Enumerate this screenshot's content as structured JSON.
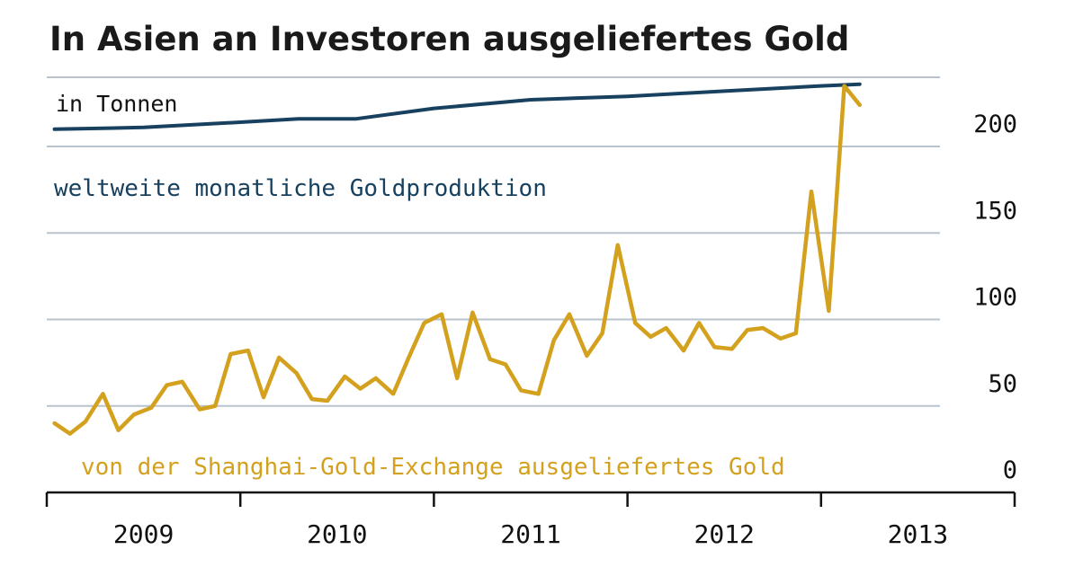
{
  "chart_data": {
    "type": "line",
    "title": "In Asien an Investoren ausgeliefertes Gold",
    "unit_label": "in Tonnen",
    "ylim": [
      0,
      240
    ],
    "y_ticks": [
      0,
      50,
      100,
      150,
      200
    ],
    "grid": true,
    "x_start": 2009.0,
    "x_end": 2014.0,
    "year_labels": [
      "2009",
      "2010",
      "2011",
      "2012",
      "2013"
    ],
    "year_label_positions": [
      2009.5,
      2010.5,
      2011.5,
      2012.5,
      2013.5
    ],
    "year_boundaries": [
      2009.0,
      2010.0,
      2011.0,
      2012.0,
      2013.0,
      2014.0
    ],
    "series": [
      {
        "name": "weltweite monatliche Goldproduktion",
        "color": "#17415f",
        "x": [
          2009.04,
          2009.5,
          2010.0,
          2010.3,
          2010.6,
          2011.0,
          2011.5,
          2012.0,
          2012.5,
          2013.0,
          2013.2
        ],
        "values": [
          210,
          211,
          214,
          216,
          216,
          222,
          227,
          229,
          232,
          235,
          236
        ]
      },
      {
        "name": "von der Shanghai-Gold-Exchange ausgeliefertes Gold",
        "color": "#d4a11e",
        "x": [
          2009.04,
          2009.12,
          2009.2,
          2009.29,
          2009.37,
          2009.45,
          2009.54,
          2009.62,
          2009.7,
          2009.79,
          2009.87,
          2009.95,
          2010.04,
          2010.12,
          2010.2,
          2010.29,
          2010.37,
          2010.45,
          2010.54,
          2010.62,
          2010.7,
          2010.79,
          2010.87,
          2010.95,
          2011.04,
          2011.12,
          2011.2,
          2011.29,
          2011.37,
          2011.45,
          2011.54,
          2011.62,
          2011.7,
          2011.79,
          2011.87,
          2011.95,
          2012.04,
          2012.12,
          2012.2,
          2012.29,
          2012.37,
          2012.45,
          2012.54,
          2012.62,
          2012.7,
          2012.79,
          2012.87,
          2012.95,
          2013.04,
          2013.12,
          2013.2
        ],
        "values": [
          40,
          34,
          41,
          57,
          36,
          45,
          49,
          62,
          64,
          48,
          50,
          80,
          82,
          55,
          78,
          69,
          54,
          53,
          67,
          60,
          66,
          57,
          78,
          98,
          103,
          66,
          104,
          77,
          74,
          59,
          57,
          88,
          103,
          79,
          92,
          143,
          98,
          90,
          95,
          82,
          98,
          84,
          83,
          94,
          95,
          89,
          92,
          174,
          105,
          235,
          224
        ]
      }
    ]
  }
}
